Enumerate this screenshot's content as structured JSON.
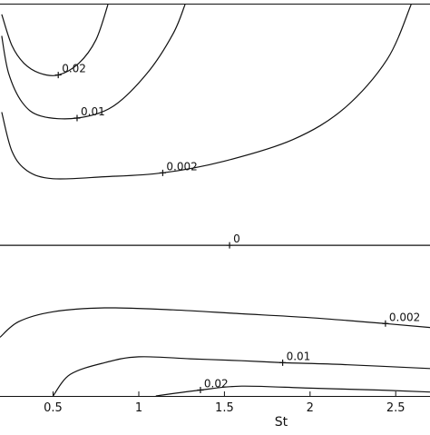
{
  "chart_data": {
    "type": "contour",
    "xlabel": "St",
    "ylabel": "",
    "title": "",
    "xlim": [
      0.19,
      2.7
    ],
    "ylim": [
      -1,
      1
    ],
    "x_ticks": [
      {
        "value": 0.5,
        "label": "0.5"
      },
      {
        "value": 1,
        "label": "1"
      },
      {
        "value": 1.5,
        "label": "1.5"
      },
      {
        "value": 2,
        "label": "2"
      },
      {
        "value": 2.5,
        "label": "2.5"
      }
    ],
    "contours": [
      {
        "level": "0.02",
        "label_at": [
          0.53,
          0.64
        ],
        "points": [
          [
            0.2,
            0.95
          ],
          [
            0.26,
            0.79
          ],
          [
            0.33,
            0.7
          ],
          [
            0.42,
            0.65
          ],
          [
            0.53,
            0.64
          ],
          [
            0.65,
            0.7
          ],
          [
            0.75,
            0.82
          ],
          [
            0.82,
            1.0
          ]
        ]
      },
      {
        "level": "0.01",
        "label_at": [
          0.64,
          0.42
        ],
        "points": [
          [
            0.2,
            0.84
          ],
          [
            0.24,
            0.65
          ],
          [
            0.32,
            0.5
          ],
          [
            0.43,
            0.43
          ],
          [
            0.64,
            0.42
          ],
          [
            0.85,
            0.48
          ],
          [
            1.05,
            0.65
          ],
          [
            1.2,
            0.85
          ],
          [
            1.27,
            1.0
          ]
        ]
      },
      {
        "level": "0.002",
        "label_at": [
          1.14,
          0.14
        ],
        "points": [
          [
            0.2,
            0.45
          ],
          [
            0.26,
            0.25
          ],
          [
            0.35,
            0.15
          ],
          [
            0.5,
            0.11
          ],
          [
            0.8,
            0.12
          ],
          [
            1.14,
            0.14
          ],
          [
            1.5,
            0.2
          ],
          [
            1.9,
            0.31
          ],
          [
            2.2,
            0.47
          ],
          [
            2.45,
            0.72
          ],
          [
            2.59,
            1.0
          ]
        ]
      },
      {
        "level": "0",
        "label_at": [
          1.53,
          -0.23
        ],
        "points": [
          [
            0.19,
            -0.23
          ],
          [
            2.7,
            -0.23
          ]
        ]
      },
      {
        "level": "0.002",
        "label_at": [
          2.44,
          -0.63
        ],
        "points": [
          [
            0.19,
            -0.7
          ],
          [
            0.3,
            -0.62
          ],
          [
            0.5,
            -0.57
          ],
          [
            0.8,
            -0.55
          ],
          [
            1.2,
            -0.56
          ],
          [
            1.6,
            -0.58
          ],
          [
            2.0,
            -0.6
          ],
          [
            2.44,
            -0.63
          ],
          [
            2.7,
            -0.65
          ]
        ]
      },
      {
        "level": "0.01",
        "label_at": [
          1.84,
          -0.83
        ],
        "points": [
          [
            0.5,
            -1.0
          ],
          [
            0.6,
            -0.89
          ],
          [
            0.8,
            -0.83
          ],
          [
            1.0,
            -0.8
          ],
          [
            1.3,
            -0.81
          ],
          [
            1.6,
            -0.82
          ],
          [
            1.84,
            -0.83
          ],
          [
            2.2,
            -0.84
          ],
          [
            2.7,
            -0.86
          ]
        ]
      },
      {
        "level": "0.02",
        "label_at": [
          1.36,
          -0.97
        ],
        "points": [
          [
            1.1,
            -1.0
          ],
          [
            1.36,
            -0.97
          ],
          [
            1.6,
            -0.95
          ],
          [
            2.0,
            -0.96
          ],
          [
            2.4,
            -0.97
          ],
          [
            2.7,
            -0.98
          ]
        ]
      }
    ]
  }
}
